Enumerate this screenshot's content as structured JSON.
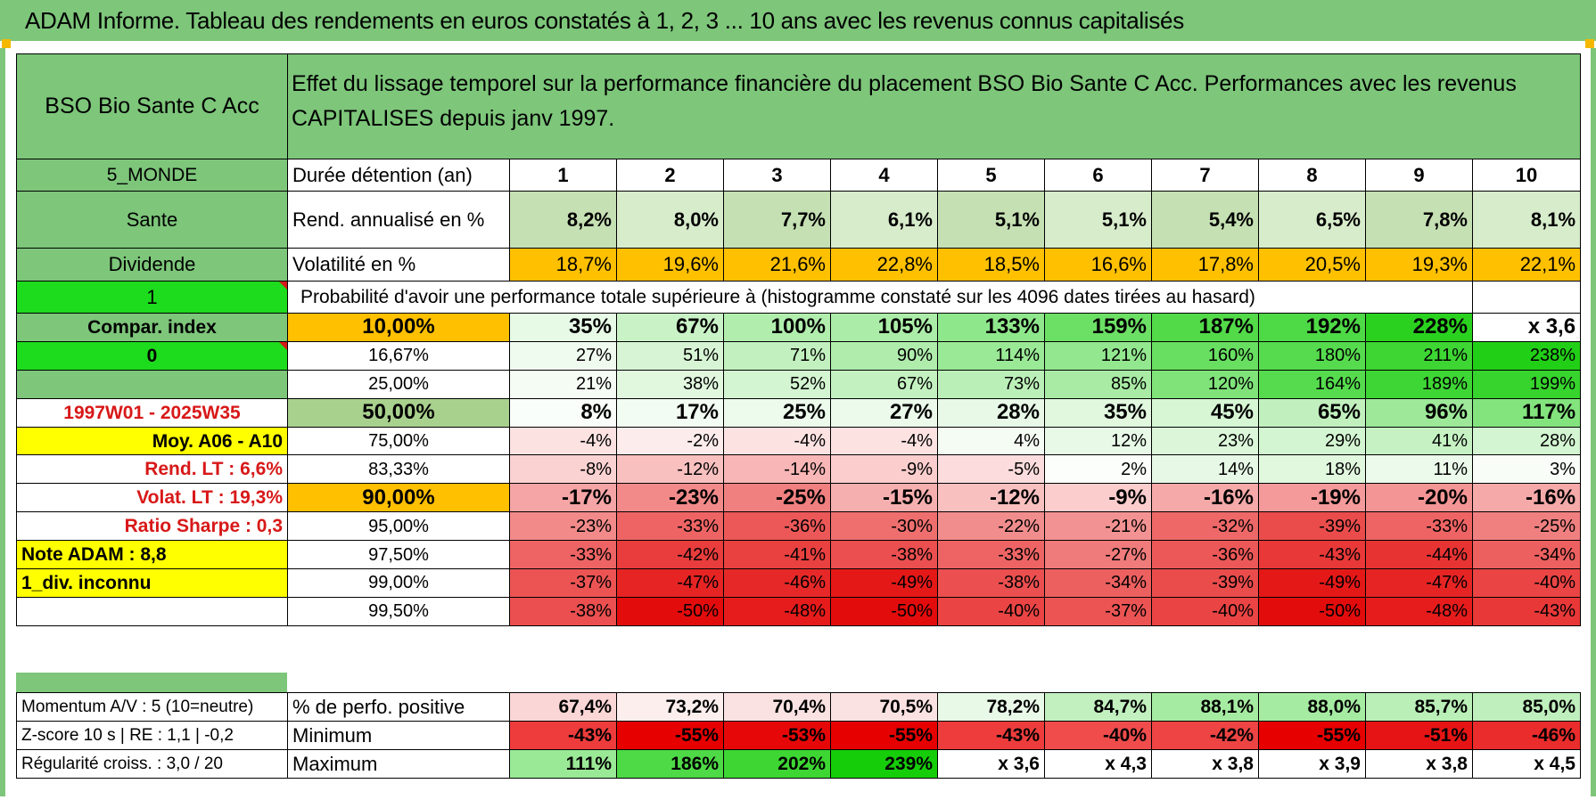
{
  "header": {
    "title": "ADAM Informe. Tableau des rendements en euros constatés à 1, 2, 3 ... 10 ans avec les revenus connus capitalisés"
  },
  "fund": {
    "name": "BSO Bio Sante C Acc",
    "description": "Effet du lissage temporel sur la performance financière du placement BSO Bio Sante C Acc. Performances avec les revenus CAPITALISES depuis janv 1997."
  },
  "left": {
    "zone": "5_MONDE",
    "sector": "Sante",
    "income_type": "Dividende",
    "selector_1": "1",
    "compar_label": "Compar. index",
    "selector_0": "0",
    "empty": "",
    "period": "1997W01 - 2025W35",
    "moy_label": "Moy. A06 - A10",
    "rend_lt": "Rend. LT :    6,6%",
    "volat_lt": "Volat. LT :    19,3%",
    "sharpe": "Ratio Sharpe :    0,3",
    "note": "Note ADAM : 8,8",
    "div": "1_div. inconnu",
    "blank": ""
  },
  "metrics": {
    "horizon_label": "Durée détention (an)",
    "years": [
      "1",
      "2",
      "3",
      "4",
      "5",
      "6",
      "7",
      "8",
      "9",
      "10"
    ],
    "rend_label": "Rend. annualisé en %",
    "rend": [
      "8,2%",
      "8,0%",
      "7,7%",
      "6,1%",
      "5,1%",
      "5,1%",
      "5,4%",
      "6,5%",
      "7,8%",
      "8,1%"
    ],
    "vol_label": "Volatilité en %",
    "vol": [
      "18,7%",
      "19,6%",
      "21,6%",
      "22,8%",
      "18,5%",
      "16,6%",
      "17,8%",
      "20,5%",
      "19,3%",
      "22,1%"
    ],
    "proba_title": "Probabilité d'avoir une performance totale supérieure à (histogramme constaté sur les 4096 dates tirées au hasard)"
  },
  "quantiles": [
    {
      "label": "10,00%",
      "bold": true,
      "label_bg": "#ffc000",
      "values": [
        "35%",
        "67%",
        "100%",
        "105%",
        "133%",
        "159%",
        "187%",
        "192%",
        "228%",
        "x 3,6"
      ],
      "colors": [
        "#e6fae6",
        "#c9f3c7",
        "#b1eeae",
        "#abeda8",
        "#8fe78b",
        "#6ce065",
        "#52da49",
        "#4ed946",
        "#2ad21f",
        "#ffffff"
      ]
    },
    {
      "label": "16,67%",
      "bold": false,
      "label_bg": "#ffffff",
      "values": [
        "27%",
        "51%",
        "71%",
        "90%",
        "114%",
        "121%",
        "160%",
        "180%",
        "211%",
        "238%"
      ],
      "colors": [
        "#f0fbef",
        "#d7f5d5",
        "#c2f1bf",
        "#b0edad",
        "#9ae996",
        "#93e78f",
        "#68df61",
        "#55db4d",
        "#3dd633",
        "#22cf17"
      ]
    },
    {
      "label": "25,00%",
      "bold": false,
      "label_bg": "#ffffff",
      "values": [
        "21%",
        "38%",
        "52%",
        "67%",
        "73%",
        "85%",
        "120%",
        "164%",
        "189%",
        "199%"
      ],
      "colors": [
        "#f5fcf4",
        "#e1f8df",
        "#d3f5d1",
        "#c3f1c0",
        "#bbefb8",
        "#a9eba5",
        "#80e37a",
        "#55db4d",
        "#3ed634",
        "#36d42c"
      ]
    },
    {
      "label": "50,00%",
      "bold": true,
      "label_bg": "#a9d18e",
      "values": [
        "8%",
        "17%",
        "25%",
        "27%",
        "28%",
        "35%",
        "45%",
        "65%",
        "96%",
        "117%"
      ],
      "colors": [
        "#fafefa",
        "#f3fcf2",
        "#edfbec",
        "#ebfaea",
        "#e8f9e7",
        "#e1f8df",
        "#d6f6d4",
        "#c1f0be",
        "#9de999",
        "#83e47d"
      ]
    },
    {
      "label": "75,00%",
      "bold": false,
      "label_bg": "#ffffff",
      "values": [
        "-4%",
        "-2%",
        "-4%",
        "-4%",
        "4%",
        "12%",
        "23%",
        "29%",
        "41%",
        "28%"
      ],
      "colors": [
        "#fde2e2",
        "#fdecec",
        "#fde2e2",
        "#fde2e2",
        "#f5fcf4",
        "#e9f9e8",
        "#dbf6d9",
        "#d3f5d1",
        "#c6f1c3",
        "#d3f5d1"
      ]
    },
    {
      "label": "83,33%",
      "bold": false,
      "label_bg": "#ffffff",
      "values": [
        "-8%",
        "-12%",
        "-14%",
        "-9%",
        "-5%",
        "2%",
        "14%",
        "18%",
        "11%",
        "3%"
      ],
      "colors": [
        "#fbd2d2",
        "#f9c0c0",
        "#f8b6b6",
        "#fbcdcd",
        "#fcdcdc",
        "#fbfefb",
        "#e7f9e6",
        "#e1f8df",
        "#ebfaea",
        "#f8fdf7"
      ]
    },
    {
      "label": "90,00%",
      "bold": true,
      "label_bg": "#ffc000",
      "values": [
        "-17%",
        "-23%",
        "-25%",
        "-15%",
        "-12%",
        "-9%",
        "-16%",
        "-19%",
        "-20%",
        "-16%"
      ],
      "colors": [
        "#f5a5a5",
        "#f28a8a",
        "#f08080",
        "#f6afaf",
        "#f9c0c0",
        "#fbcdcd",
        "#f5a9a9",
        "#f49a9a",
        "#f39595",
        "#f5a9a9"
      ]
    },
    {
      "label": "95,00%",
      "bold": false,
      "label_bg": "#ffffff",
      "values": [
        "-23%",
        "-33%",
        "-36%",
        "-30%",
        "-22%",
        "-21%",
        "-32%",
        "-39%",
        "-33%",
        "-25%"
      ],
      "colors": [
        "#f28a8a",
        "#ee6464",
        "#ec5858",
        "#ef6f6f",
        "#f28d8d",
        "#f39292",
        "#ee6868",
        "#ea4c4c",
        "#ee6464",
        "#f08080"
      ]
    },
    {
      "label": "97,50%",
      "bold": false,
      "label_bg": "#ffffff",
      "values": [
        "-33%",
        "-42%",
        "-41%",
        "-38%",
        "-33%",
        "-27%",
        "-36%",
        "-43%",
        "-44%",
        "-34%"
      ],
      "colors": [
        "#ee6464",
        "#e93c3c",
        "#e94040",
        "#eb4f4f",
        "#ee6464",
        "#f07b7b",
        "#ec5858",
        "#e83838",
        "#e83333",
        "#ed6060"
      ]
    },
    {
      "label": "99,00%",
      "bold": false,
      "label_bg": "#ffffff",
      "values": [
        "-37%",
        "-47%",
        "-46%",
        "-49%",
        "-38%",
        "-34%",
        "-39%",
        "-49%",
        "-47%",
        "-40%"
      ],
      "colors": [
        "#ec5454",
        "#e62424",
        "#e62828",
        "#e51818",
        "#eb4f4f",
        "#ed6060",
        "#ea4c4c",
        "#e51818",
        "#e62424",
        "#ea4444"
      ]
    },
    {
      "label": "99,50%",
      "bold": false,
      "label_bg": "#ffffff",
      "values": [
        "-38%",
        "-50%",
        "-48%",
        "-50%",
        "-40%",
        "-37%",
        "-40%",
        "-50%",
        "-48%",
        "-43%"
      ],
      "colors": [
        "#eb4f4f",
        "#e30c0c",
        "#e61c1c",
        "#e30c0c",
        "#ea4444",
        "#ec5454",
        "#ea4444",
        "#e30c0c",
        "#e61c1c",
        "#e83838"
      ]
    }
  ],
  "bottom": [
    {
      "left": "Momentum A/V : 5 (10=neutre)",
      "label": "% de perfo. positive",
      "values": [
        "67,4%",
        "73,2%",
        "70,4%",
        "70,5%",
        "78,2%",
        "84,7%",
        "88,1%",
        "88,0%",
        "85,7%",
        "85,0%"
      ],
      "colors": [
        "#fbd6d6",
        "#fdeeee",
        "#fbe2e2",
        "#fbe2e2",
        "#e9f9e8",
        "#c2f0bf",
        "#a6eba2",
        "#a6eba2",
        "#baefb7",
        "#bfefbc"
      ]
    },
    {
      "left": "Z-score 10 s | RE : 1,1 | -0,2",
      "label": "Minimum",
      "values": [
        "-43%",
        "-55%",
        "-53%",
        "-55%",
        "-43%",
        "-40%",
        "-42%",
        "-55%",
        "-51%",
        "-46%"
      ],
      "colors": [
        "#ee3c3c",
        "#e60000",
        "#e60808",
        "#e60000",
        "#ee3c3c",
        "#f04c4c",
        "#ee4444",
        "#e60000",
        "#e61414",
        "#ea2c2c"
      ]
    },
    {
      "left": "Régularité croiss. : 3,0 / 20",
      "label": "Maximum",
      "values": [
        "111%",
        "186%",
        "202%",
        "239%",
        "x 3,6",
        "x 4,3",
        "x 3,8",
        "x 3,9",
        "x 3,8",
        "x 4,5"
      ],
      "colors": [
        "#9ae996",
        "#4ed946",
        "#3dd633",
        "#16cd0a",
        "#ffffff",
        "#ffffff",
        "#ffffff",
        "#ffffff",
        "#ffffff",
        "#ffffff"
      ]
    }
  ]
}
